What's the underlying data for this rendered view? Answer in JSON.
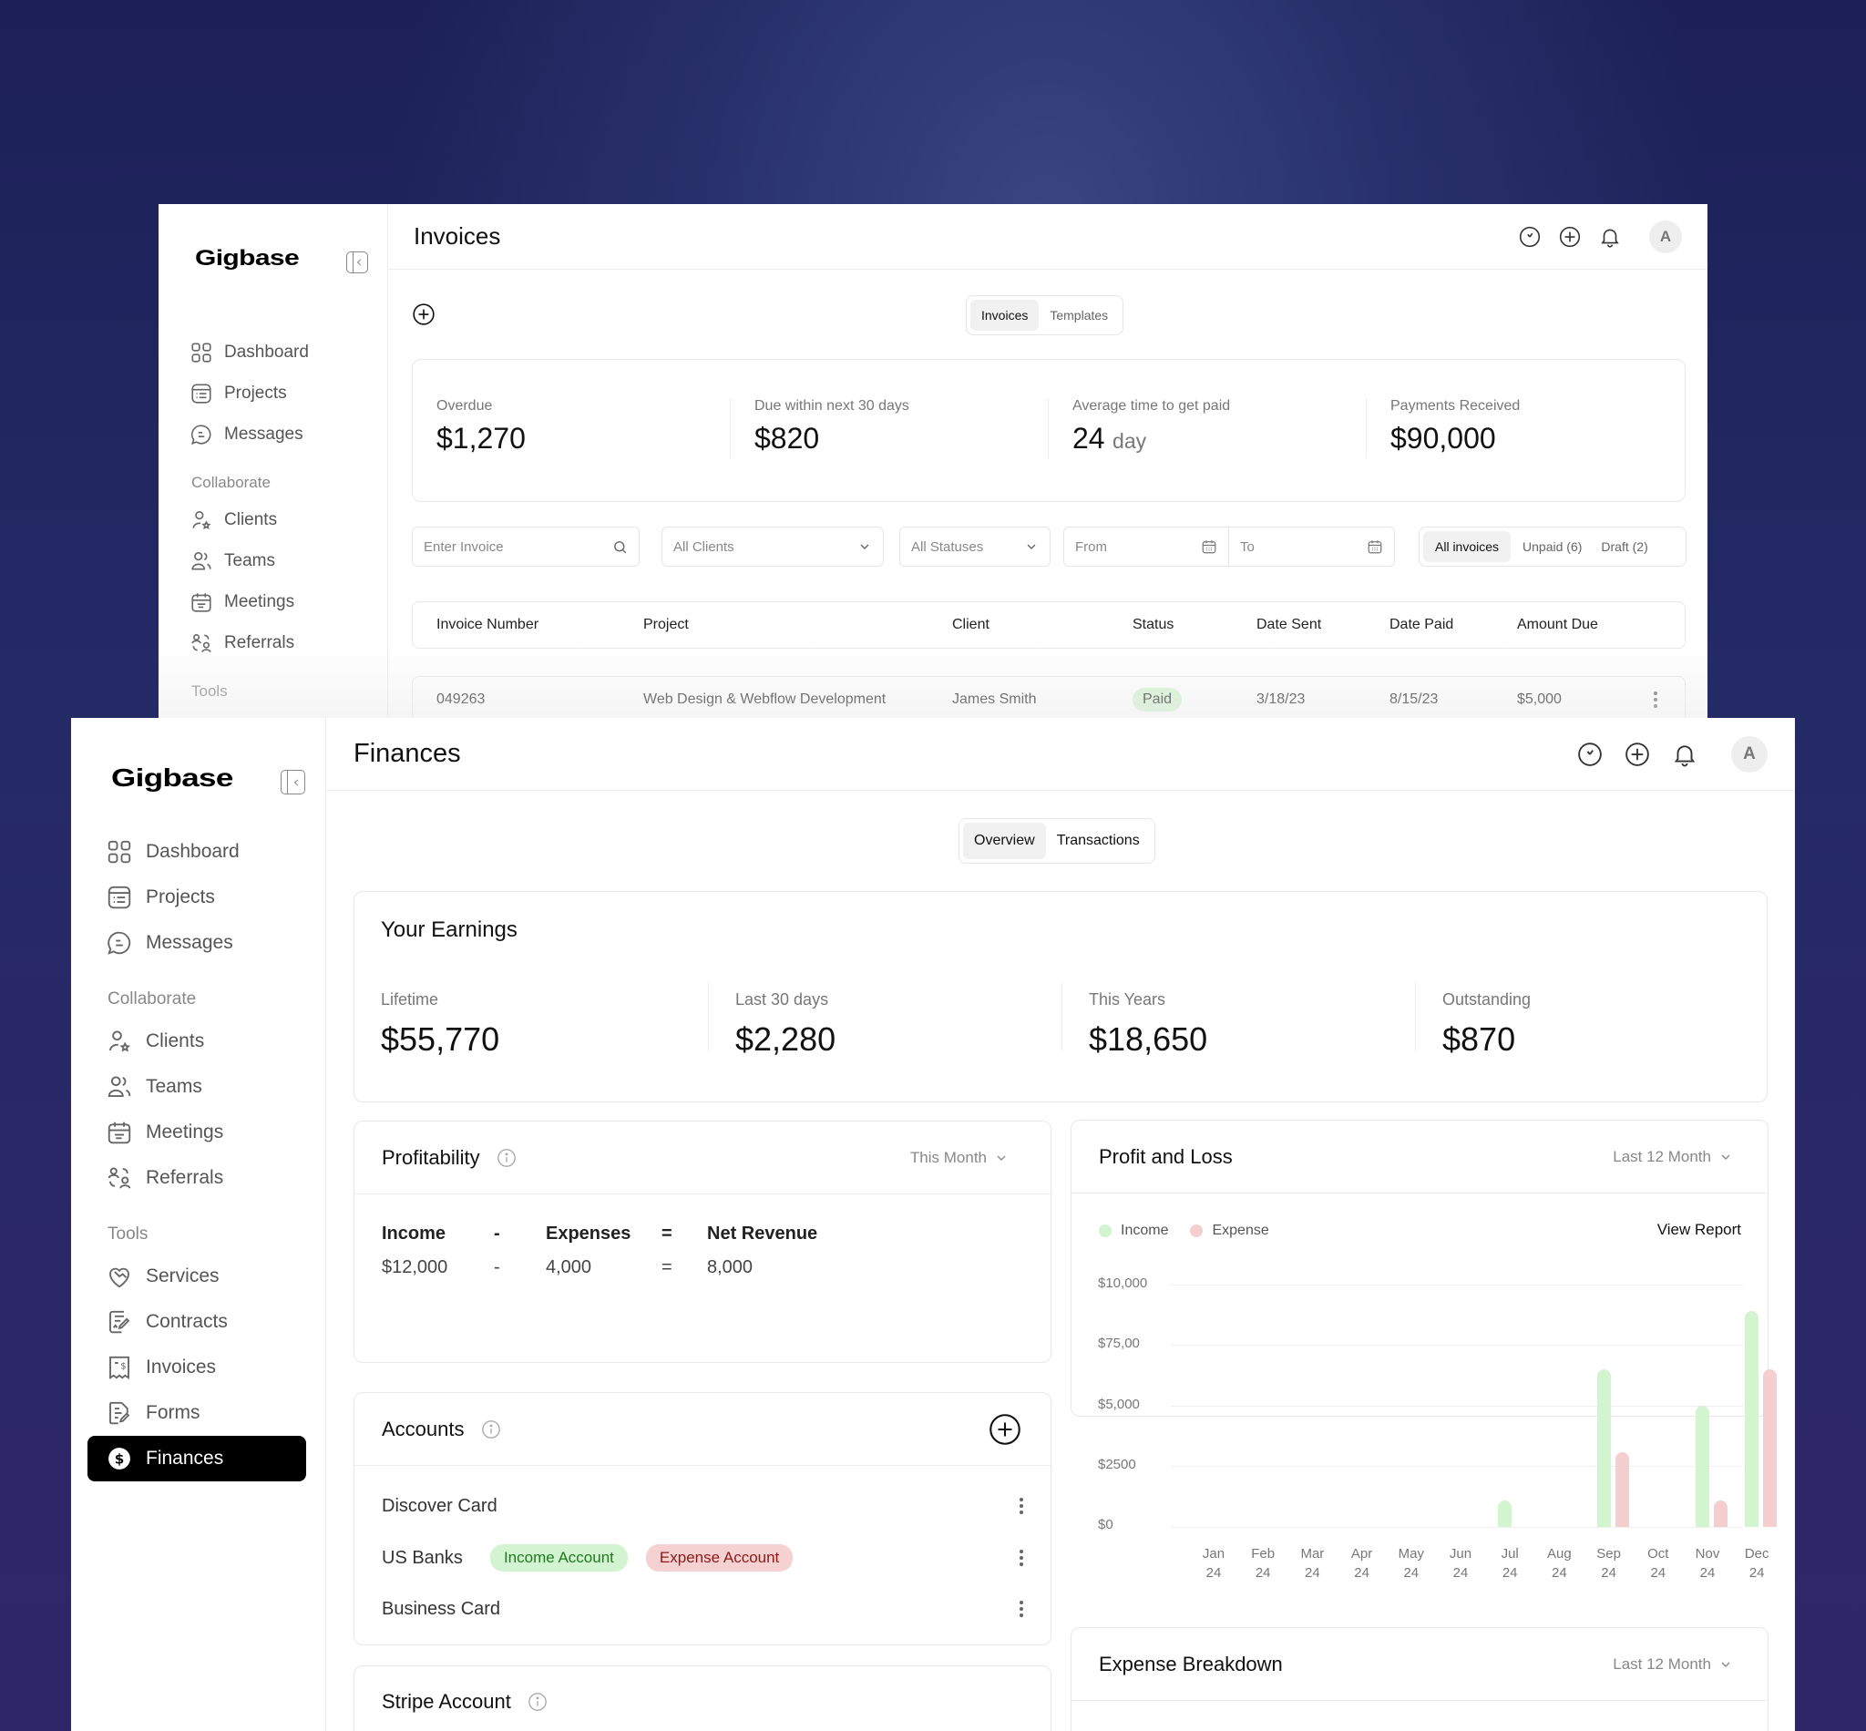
{
  "invoices_window": {
    "brand": "Gigbase",
    "page_title": "Invoices",
    "sidebar": {
      "main": [
        {
          "label": "Dashboard",
          "icon": "dashboard-icon"
        },
        {
          "label": "Projects",
          "icon": "projects-icon"
        },
        {
          "label": "Messages",
          "icon": "messages-icon"
        }
      ],
      "collaborate_label": "Collaborate",
      "collaborate": [
        {
          "label": "Clients",
          "icon": "clients-icon"
        },
        {
          "label": "Teams",
          "icon": "teams-icon"
        },
        {
          "label": "Meetings",
          "icon": "meetings-icon"
        },
        {
          "label": "Referrals",
          "icon": "referrals-icon"
        }
      ],
      "tools_label": "Tools"
    },
    "avatar_initial": "A",
    "tabs": [
      {
        "label": "Invoices",
        "active": true
      },
      {
        "label": "Templates",
        "active": false
      }
    ],
    "stats": [
      {
        "label": "Overdue",
        "value": "$1,270"
      },
      {
        "label": "Due within next 30 days",
        "value": "$820"
      },
      {
        "label": "Average time to get paid",
        "value": "24",
        "unit": "day"
      },
      {
        "label": "Payments Received",
        "value": "$90,000"
      }
    ],
    "filters": {
      "search_placeholder": "Enter Invoice",
      "clients_select": "All Clients",
      "status_select": "All Statuses",
      "from_placeholder": "From",
      "to_placeholder": "To",
      "segments": [
        {
          "label": "All invoices",
          "active": true
        },
        {
          "label": "Unpaid (6)",
          "active": false
        },
        {
          "label": "Draft (2)",
          "active": false
        }
      ]
    },
    "table": {
      "columns": [
        "Invoice Number",
        "Project",
        "Client",
        "Status",
        "Date Sent",
        "Date Paid",
        "Amount Due"
      ],
      "rows": [
        {
          "invoice_number": "049263",
          "project": "Web Design & Webflow Development",
          "client": "James Smith",
          "status": "Paid",
          "date_sent": "3/18/23",
          "date_paid": "8/15/23",
          "amount_due": "$5,000"
        }
      ]
    }
  },
  "finances_window": {
    "brand": "Gigbase",
    "page_title": "Finances",
    "avatar_initial": "A",
    "sidebar": {
      "main": [
        {
          "label": "Dashboard",
          "icon": "dashboard-icon"
        },
        {
          "label": "Projects",
          "icon": "projects-icon"
        },
        {
          "label": "Messages",
          "icon": "messages-icon"
        }
      ],
      "collaborate_label": "Collaborate",
      "collaborate": [
        {
          "label": "Clients",
          "icon": "clients-icon"
        },
        {
          "label": "Teams",
          "icon": "teams-icon"
        },
        {
          "label": "Meetings",
          "icon": "meetings-icon"
        },
        {
          "label": "Referrals",
          "icon": "referrals-icon"
        }
      ],
      "tools_label": "Tools",
      "tools": [
        {
          "label": "Services",
          "icon": "services-icon"
        },
        {
          "label": "Contracts",
          "icon": "contracts-icon"
        },
        {
          "label": "Invoices",
          "icon": "invoices-icon"
        },
        {
          "label": "Forms",
          "icon": "forms-icon"
        },
        {
          "label": "Finances",
          "icon": "finances-icon",
          "active": true
        }
      ]
    },
    "tabs": [
      {
        "label": "Overview",
        "active": true
      },
      {
        "label": "Transactions",
        "active": false
      }
    ],
    "earnings": {
      "title": "Your Earnings",
      "stats": [
        {
          "label": "Lifetime",
          "value": "$55,770"
        },
        {
          "label": "Last 30 days",
          "value": "$2,280"
        },
        {
          "label": "This Years",
          "value": "$18,650"
        },
        {
          "label": "Outstanding",
          "value": "$870"
        }
      ]
    },
    "profitability": {
      "title": "Profitability",
      "period": "This Month",
      "headers": [
        "Income",
        "-",
        "Expenses",
        "=",
        "Net Revenue"
      ],
      "values": [
        "$12,000",
        "-",
        "4,000",
        "=",
        "8,000"
      ]
    },
    "accounts": {
      "title": "Accounts",
      "items": [
        {
          "name": "Discover Card",
          "tags": []
        },
        {
          "name": "US Banks",
          "tags": [
            {
              "label": "Income Account",
              "kind": "income"
            },
            {
              "label": "Expense Account",
              "kind": "expense"
            }
          ]
        },
        {
          "name": "Business Card",
          "tags": []
        }
      ]
    },
    "stripe": {
      "title": "Stripe Account"
    },
    "profit_loss": {
      "title": "Profit and Loss",
      "period": "Last 12 Month",
      "legend": [
        {
          "label": "Income",
          "color": "#d2f4cf"
        },
        {
          "label": "Expense",
          "color": "#f5cfcf"
        }
      ],
      "view_report": "View Report"
    },
    "expense_breakdown": {
      "title": "Expense Breakdown",
      "period": "Last 12 Month"
    }
  },
  "chart_data": {
    "type": "bar",
    "title": "Profit and Loss",
    "xlabel": "",
    "ylabel": "",
    "categories": [
      "Jan 24",
      "Feb 24",
      "Mar 24",
      "Apr 24",
      "May 24",
      "Jun 24",
      "Jul 24",
      "Aug 24",
      "Sep 24",
      "Oct 24",
      "Nov 24",
      "Dec 24"
    ],
    "x_ticks": [
      {
        "month": "Jan",
        "year": "24"
      },
      {
        "month": "Feb",
        "year": "24"
      },
      {
        "month": "Mar",
        "year": "24"
      },
      {
        "month": "Apr",
        "year": "24"
      },
      {
        "month": "May",
        "year": "24"
      },
      {
        "month": "Jun",
        "year": "24"
      },
      {
        "month": "Jul",
        "year": "24"
      },
      {
        "month": "Aug",
        "year": "24"
      },
      {
        "month": "Sep",
        "year": "24"
      },
      {
        "month": "Oct",
        "year": "24"
      },
      {
        "month": "Nov",
        "year": "24"
      },
      {
        "month": "Dec",
        "year": "24"
      }
    ],
    "series": [
      {
        "name": "Income",
        "color": "#d2f4cf",
        "values": [
          0,
          0,
          0,
          0,
          0,
          0,
          1100,
          0,
          6500,
          0,
          5000,
          8900
        ]
      },
      {
        "name": "Expense",
        "color": "#f5cfcf",
        "values": [
          0,
          0,
          0,
          0,
          0,
          0,
          0,
          0,
          3100,
          0,
          1100,
          6500
        ]
      }
    ],
    "y_ticks": [
      "$10,000",
      "$75,00",
      "$5,000",
      "$2500",
      "$0"
    ],
    "ylim": [
      0,
      10000
    ],
    "grid": true,
    "legend_position": "top-left"
  }
}
